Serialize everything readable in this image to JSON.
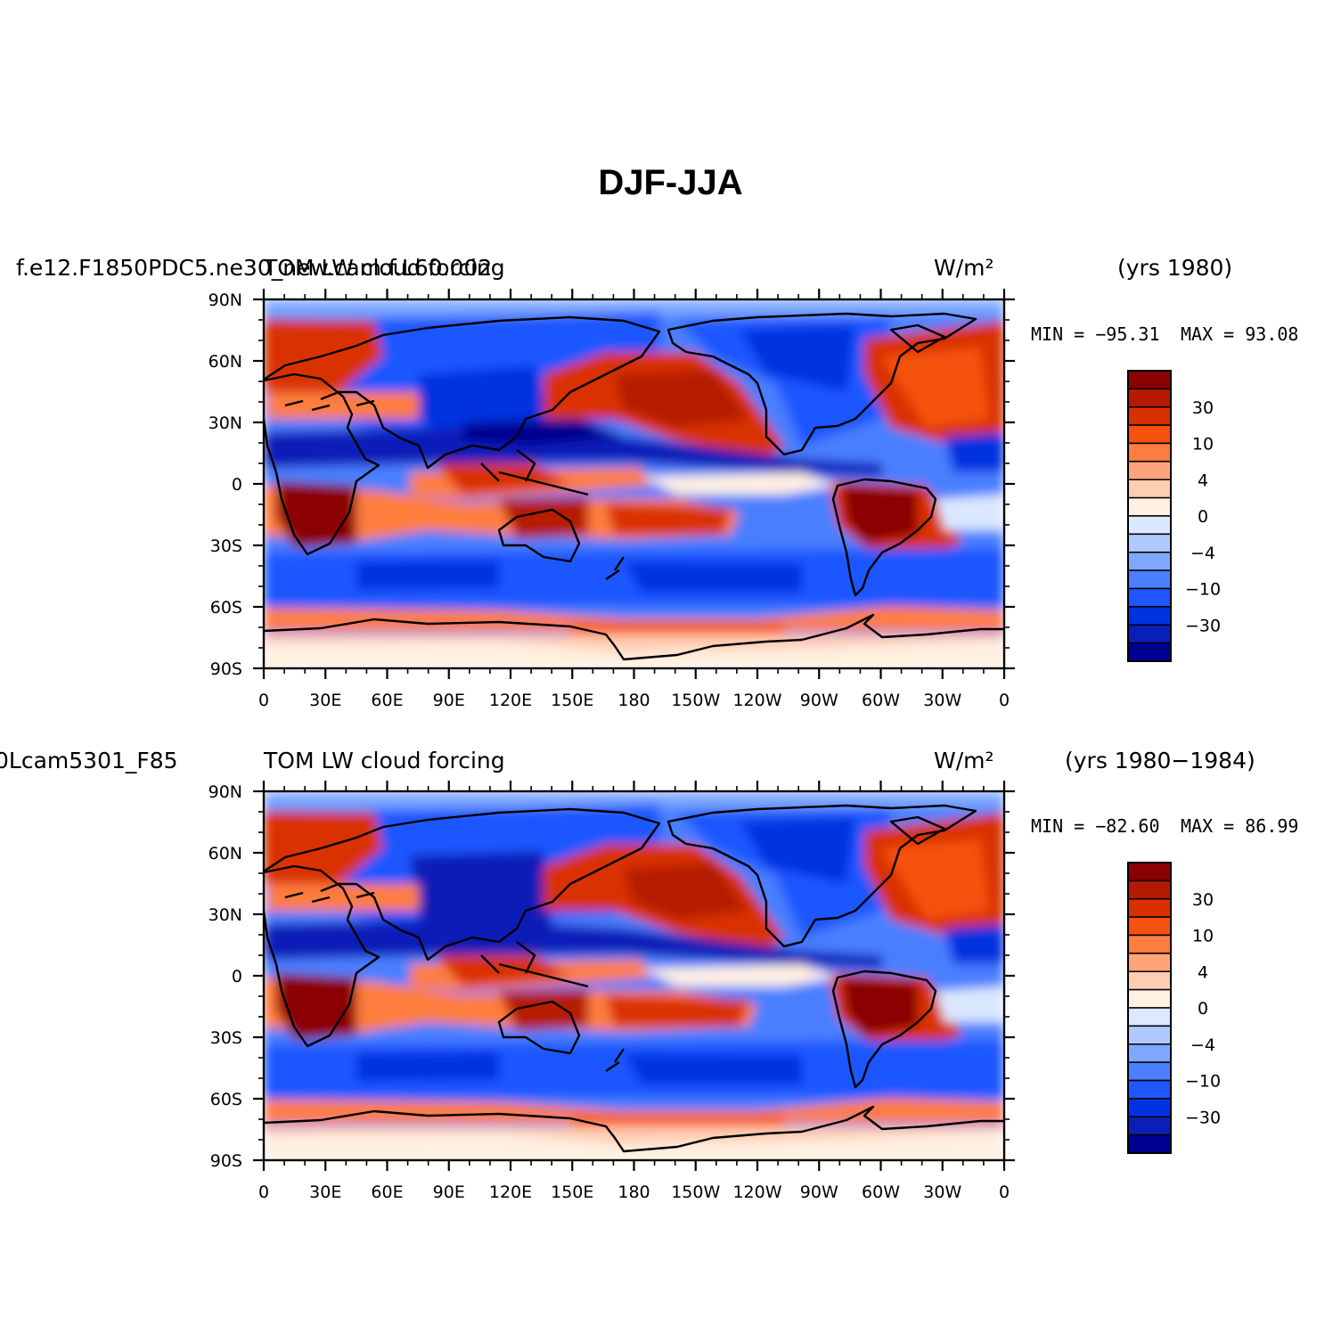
{
  "title": "DJF-JJA",
  "panels": [
    {
      "case_name": "f.e12.F1850PDC5.ne30_new.cam.f.L60.002",
      "variable": "TOM LW cloud forcing",
      "units": "W/m²",
      "years": "(yrs 1980)",
      "min_label": "MIN = −95.31",
      "max_label": "MAX =  93.08"
    },
    {
      "case_name": "0Lcam5301_F85",
      "variable": "TOM LW cloud forcing",
      "units": "W/m²",
      "years": "(yrs 1980−1984)",
      "min_label": "MIN = −82.60",
      "max_label": "MAX =  86.99"
    }
  ],
  "axes": {
    "lat_labels": [
      "90N",
      "60N",
      "30N",
      "0",
      "30S",
      "60S",
      "90S"
    ],
    "lon_labels": [
      "0",
      "30E",
      "60E",
      "90E",
      "120E",
      "150E",
      "180",
      "150W",
      "120W",
      "90W",
      "60W",
      "30W",
      "0"
    ]
  },
  "colorbar": {
    "tick_labels": [
      "30",
      "10",
      "4",
      "0",
      "−4",
      "−10",
      "−30"
    ],
    "colors": [
      "#8b0000",
      "#b51a00",
      "#d93000",
      "#f5520f",
      "#ff7d3e",
      "#ffa47a",
      "#ffcdb2",
      "#fff0e2",
      "#dbe8ff",
      "#b0c9ff",
      "#7ea8ff",
      "#4a7fff",
      "#1f56ff",
      "#0033e0",
      "#0a1fb8",
      "#000090"
    ]
  }
}
